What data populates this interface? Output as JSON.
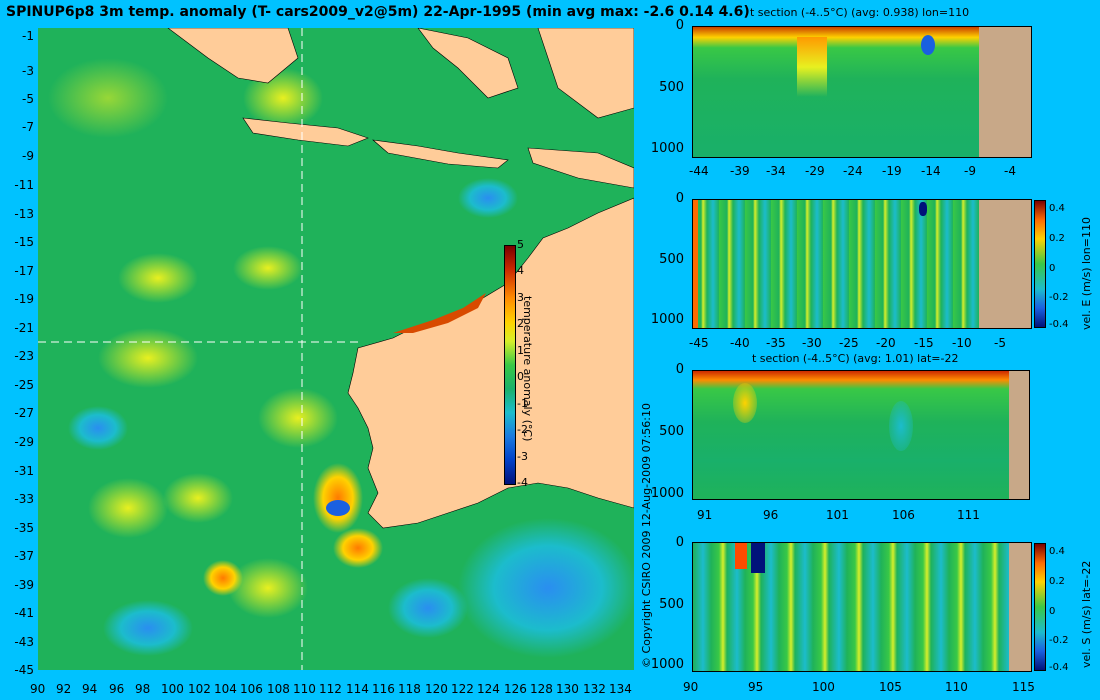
{
  "title": "SPINUP6p8 3m temp. anomaly (T- cars2009_v2@5m) 22-Apr-1995 (min avg max: -2.6 0.14 4.6)",
  "map": {
    "lat_ticks": [
      "-1",
      "-3",
      "-5",
      "-7",
      "-9",
      "-11",
      "-13",
      "-15",
      "-17",
      "-19",
      "-21",
      "-23",
      "-25",
      "-27",
      "-29",
      "-31",
      "-33",
      "-35",
      "-37",
      "-39",
      "-41",
      "-43",
      "-45"
    ],
    "lon_ticks": [
      "90",
      "92",
      "94",
      "96",
      "98",
      "100",
      "102",
      "104",
      "106",
      "108",
      "110",
      "112",
      "114",
      "116",
      "118",
      "120",
      "122",
      "124",
      "126",
      "128",
      "130",
      "132",
      "134"
    ],
    "colorbar_ticks": [
      "5",
      "4",
      "3",
      "2",
      "1",
      "0",
      "-1",
      "-2",
      "-3",
      "-4"
    ],
    "colorbar_title": "temperature anomaly (°C)",
    "section_lon": 110,
    "section_lat": -22
  },
  "copyright": "© Copyright CSIRO 2009  12-Aug-2009 07:56:10",
  "colors": {
    "background": "#00c2ff",
    "land": "#ffcc99",
    "panel_land": "#c8a888",
    "ocean": "#1fb25a"
  },
  "panels": [
    {
      "title": "t section (-4..5°C) (avg: 0.938) lon=110",
      "yticks": [
        "0",
        "500",
        "1000"
      ],
      "xticks": [
        "-44",
        "-39",
        "-34",
        "-29",
        "-24",
        "-19",
        "-14",
        "-9",
        "-4"
      ],
      "side_label": ""
    },
    {
      "title": "",
      "yticks": [
        "0",
        "500",
        "1000"
      ],
      "xticks": [
        "-45",
        "-40",
        "-35",
        "-30",
        "-25",
        "-20",
        "-15",
        "-10",
        "-5"
      ],
      "side_label": "vel. E (m/s) lon=110",
      "cb_ticks": [
        "0.4",
        "0.2",
        "0",
        "-0.2",
        "-0.4"
      ]
    },
    {
      "title": "t section (-4..5°C) (avg: 1.01) lat=-22",
      "yticks": [
        "0",
        "500",
        "1000"
      ],
      "xticks": [
        "91",
        "96",
        "101",
        "106",
        "111"
      ],
      "side_label": ""
    },
    {
      "title": "",
      "yticks": [
        "0",
        "500",
        "1000"
      ],
      "xticks": [
        "90",
        "95",
        "100",
        "105",
        "110",
        "115"
      ],
      "side_label": "vel. S (m/s) lat=-22",
      "cb_ticks": [
        "0.4",
        "0.2",
        "0",
        "-0.2",
        "-0.4"
      ]
    }
  ]
}
